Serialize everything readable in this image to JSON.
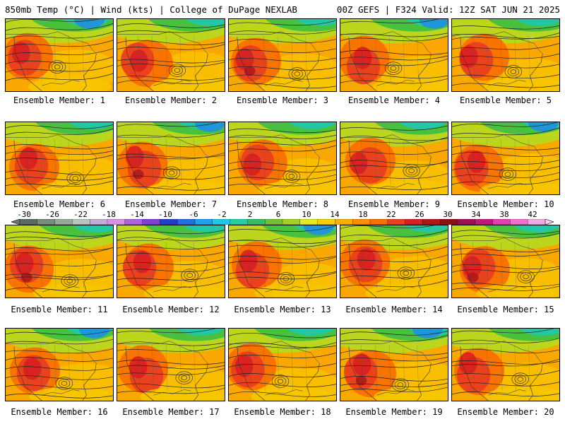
{
  "header": {
    "left": "850mb Temp (°C) | Wind (kts) | College of DuPage NEXLAB",
    "right": "00Z GEFS | F324 Valid: 12Z SAT JUN 21 2025"
  },
  "members": [
    "Ensemble Member: 1",
    "Ensemble Member: 2",
    "Ensemble Member: 3",
    "Ensemble Member: 4",
    "Ensemble Member: 5",
    "Ensemble Member: 6",
    "Ensemble Member: 7",
    "Ensemble Member: 8",
    "Ensemble Member: 9",
    "Ensemble Member: 10",
    "Ensemble Member: 11",
    "Ensemble Member: 12",
    "Ensemble Member: 13",
    "Ensemble Member: 14",
    "Ensemble Member: 15",
    "Ensemble Member: 16",
    "Ensemble Member: 17",
    "Ensemble Member: 18",
    "Ensemble Member: 19",
    "Ensemble Member: 20"
  ],
  "colorbar": {
    "ticks": [
      "-30",
      "-26",
      "-22",
      "-18",
      "-14",
      "-10",
      "-6",
      "-2",
      "2",
      "6",
      "10",
      "14",
      "18",
      "22",
      "26",
      "30",
      "34",
      "38",
      "42"
    ],
    "colors": [
      "#5a6b5e",
      "#7a8a7e",
      "#9aa89c",
      "#b8c4bc",
      "#c8a8d8",
      "#d890e8",
      "#b060e0",
      "#8040d0",
      "#2040c8",
      "#2070e0",
      "#20a0f0",
      "#20c8e8",
      "#20d0a0",
      "#30c060",
      "#70c030",
      "#a8d020",
      "#e8e820",
      "#f8d000",
      "#f8b000",
      "#f89000",
      "#f87000",
      "#e84020",
      "#d82020",
      "#b01818",
      "#901010",
      "#a01050",
      "#c01880",
      "#e040b0",
      "#f070d0",
      "#f8a8e8"
    ]
  },
  "icons": {
    "colorbar_left": "left-arrow-icon",
    "colorbar_right": "right-arrow-icon"
  }
}
